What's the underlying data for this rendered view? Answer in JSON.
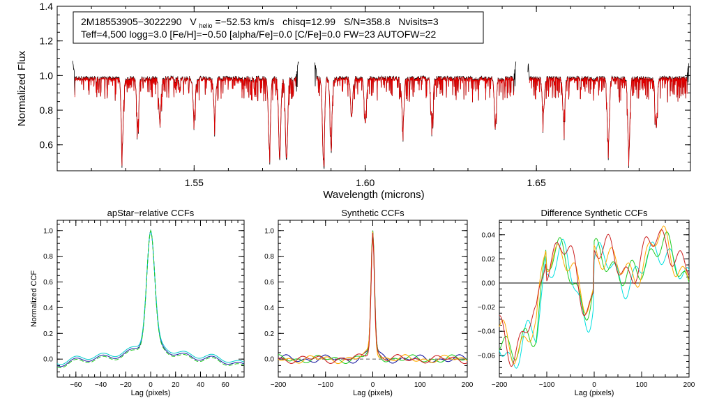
{
  "colors": {
    "axis": "#000000",
    "observed": "#000000",
    "model": "#e00000",
    "zero_line": "#000000"
  },
  "chart_data": [
    {
      "id": "spectrum",
      "type": "line",
      "title": "",
      "xlabel": "Wavelength (microns)",
      "ylabel": "Normalized Flux",
      "xlim": [
        1.51,
        1.695
      ],
      "ylim": [
        0.45,
        1.4
      ],
      "xticks": [
        1.55,
        1.6,
        1.65
      ],
      "xtick_labels": [
        "1.55",
        "1.60",
        "1.65"
      ],
      "yticks": [
        0.6,
        0.8,
        1.0,
        1.2,
        1.4
      ],
      "ytick_labels": [
        "0.6",
        "0.8",
        "1.0",
        "1.2",
        "1.4"
      ],
      "legend": {
        "line1": {
          "star_id": "2M18553905−3022290",
          "vhelio_label": "V",
          "vhelio_sub": "helio",
          "vhelio_value": "=−52.53 km/s",
          "chisq": "chisq=12.99",
          "sn": "S/N=358.8",
          "nvisits": "Nvisits=3"
        },
        "line2": "Teff=4,500 logg=3.0 [Fe/H]=−0.50 [alpha/Fe]=0.0 [C/Fe]=0.0 FW=23 AUTOFW=22"
      },
      "chips": [
        [
          1.5145,
          1.5805
        ],
        [
          1.5853,
          1.644
        ],
        [
          1.6475,
          1.6945
        ]
      ],
      "absorption_lines": [
        [
          1.529,
          0.61
        ],
        [
          1.5335,
          0.73
        ],
        [
          1.54,
          0.75
        ],
        [
          1.55,
          0.77
        ],
        [
          1.556,
          0.79
        ],
        [
          1.572,
          0.58
        ],
        [
          1.575,
          0.53
        ],
        [
          1.577,
          0.52
        ],
        [
          1.5878,
          0.52
        ],
        [
          1.59,
          0.66
        ],
        [
          1.596,
          0.78
        ],
        [
          1.6,
          0.75
        ],
        [
          1.611,
          0.72
        ],
        [
          1.6195,
          0.76
        ],
        [
          1.638,
          0.74
        ],
        [
          1.652,
          0.79
        ],
        [
          1.658,
          0.75
        ],
        [
          1.671,
          0.61
        ],
        [
          1.677,
          0.57
        ],
        [
          1.685,
          0.72
        ]
      ]
    },
    {
      "id": "apstar-ccf",
      "type": "line",
      "title": "apStar−relative CCFs",
      "xlabel": "Lag (pixels)",
      "ylabel": "Normalized CCF",
      "xlim": [
        -75,
        75
      ],
      "ylim": [
        -0.14,
        1.08
      ],
      "xticks": [
        -60,
        -40,
        -20,
        0,
        20,
        40,
        60
      ],
      "xtick_labels": [
        "−60",
        "−40",
        "−20",
        "0",
        "20",
        "40",
        "60"
      ],
      "yticks": [
        0.0,
        0.2,
        0.4,
        0.6,
        0.8,
        1.0
      ],
      "ytick_labels": [
        "0.0",
        "0.2",
        "0.4",
        "0.6",
        "0.8",
        "1.0"
      ],
      "series": [
        {
          "name": "visit-1",
          "color": "#1a1aa0",
          "offset": 0.0
        },
        {
          "name": "visit-2",
          "color": "#00cccc",
          "offset": 0.015
        },
        {
          "name": "visit-3",
          "color": "#22cc22",
          "offset": -0.01
        }
      ]
    },
    {
      "id": "synthetic-ccf",
      "type": "line",
      "title": "Synthetic CCFs",
      "xlabel": "Lag (pixels)",
      "ylabel": "",
      "xlim": [
        -200,
        200
      ],
      "ylim": [
        -0.14,
        1.08
      ],
      "xticks": [
        -200,
        -100,
        0,
        100,
        200
      ],
      "xtick_labels": [
        "−200",
        "−100",
        "0",
        "100",
        "200"
      ],
      "yticks": [
        0.0,
        0.2,
        0.4,
        0.6,
        0.8,
        1.0
      ],
      "ytick_labels": [
        "0.0",
        "0.2",
        "0.4",
        "0.6",
        "0.8",
        "1.0"
      ],
      "series": [
        {
          "name": "visit-1",
          "color": "#1a1aa0"
        },
        {
          "name": "visit-2",
          "color": "#22cc22"
        },
        {
          "name": "visit-3",
          "color": "#ffaa00"
        },
        {
          "name": "combined",
          "color": "#cc2222"
        }
      ]
    },
    {
      "id": "diff-ccf",
      "type": "line",
      "title": "Difference Synthetic CCFs",
      "xlabel": "Lag (pixels)",
      "ylabel": "",
      "xlim": [
        -200,
        200
      ],
      "ylim": [
        -0.078,
        0.052
      ],
      "xticks": [
        -200,
        -100,
        0,
        100,
        200
      ],
      "xtick_labels": [
        "−200",
        "−100",
        "0",
        "100",
        "200"
      ],
      "yticks": [
        -0.06,
        -0.04,
        -0.02,
        0.0,
        0.02,
        0.04
      ],
      "ytick_labels": [
        "−0.06",
        "−0.04",
        "−0.02",
        "0.00",
        "0.02",
        "0.04"
      ],
      "series": [
        {
          "name": "visit-1",
          "color": "#00e0e0"
        },
        {
          "name": "visit-2",
          "color": "#22cc22"
        },
        {
          "name": "visit-3",
          "color": "#ffaa00"
        },
        {
          "name": "combined",
          "color": "#cc2222"
        }
      ]
    }
  ]
}
